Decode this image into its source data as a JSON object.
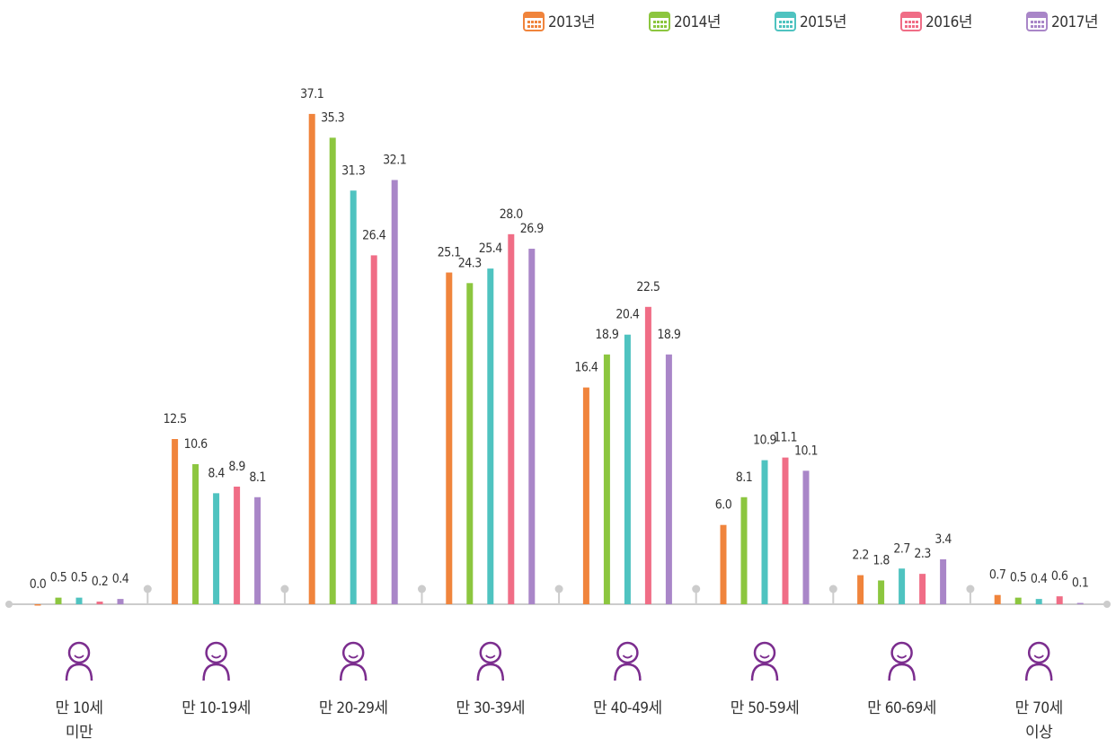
{
  "chart_data": {
    "type": "bar",
    "categories": [
      "만 10세\n미만",
      "만 10-19세",
      "만 20-29세",
      "만 30-39세",
      "만 40-49세",
      "만 50-59세",
      "만 60-69세",
      "만 70세\n이상"
    ],
    "series": [
      {
        "name": "2013년",
        "color": "#f0843c",
        "values": [
          0.0,
          12.5,
          37.1,
          25.1,
          16.4,
          6.0,
          2.2,
          0.7
        ],
        "value_labels": [
          "0.0",
          "12.5",
          "37.1",
          "25.1",
          "16.4",
          "6.0",
          "2.2",
          "0.7"
        ]
      },
      {
        "name": "2014년",
        "color": "#8cc63f",
        "values": [
          0.5,
          10.6,
          35.3,
          24.3,
          18.9,
          8.1,
          1.8,
          0.5
        ],
        "value_labels": [
          "0.5",
          "10.6",
          "35.3",
          "24.3",
          "18.9",
          "8.1",
          "1.8",
          "0.5"
        ]
      },
      {
        "name": "2015년",
        "color": "#4fc3c0",
        "values": [
          0.5,
          8.4,
          31.3,
          25.4,
          20.4,
          10.9,
          2.7,
          0.4
        ],
        "value_labels": [
          "0.5",
          "8.4",
          "31.3",
          "25.4",
          "20.4",
          "10.9",
          "2.7",
          "0.4"
        ]
      },
      {
        "name": "2016년",
        "color": "#f06d86",
        "values": [
          0.2,
          8.9,
          26.4,
          28.0,
          22.5,
          11.1,
          2.3,
          0.6
        ],
        "value_labels": [
          "0.2",
          "8.9",
          "26.4",
          "28.0",
          "22.5",
          "11.1",
          "2.3",
          "0.6"
        ]
      },
      {
        "name": "2017년",
        "color": "#a986c8",
        "values": [
          0.4,
          8.1,
          32.1,
          26.9,
          18.9,
          10.1,
          3.4,
          0.1
        ],
        "value_labels": [
          "0.4",
          "8.1",
          "32.1",
          "26.9",
          "18.9",
          "10.1",
          "3.4",
          "0.1"
        ]
      }
    ],
    "legend": "top-right"
  }
}
